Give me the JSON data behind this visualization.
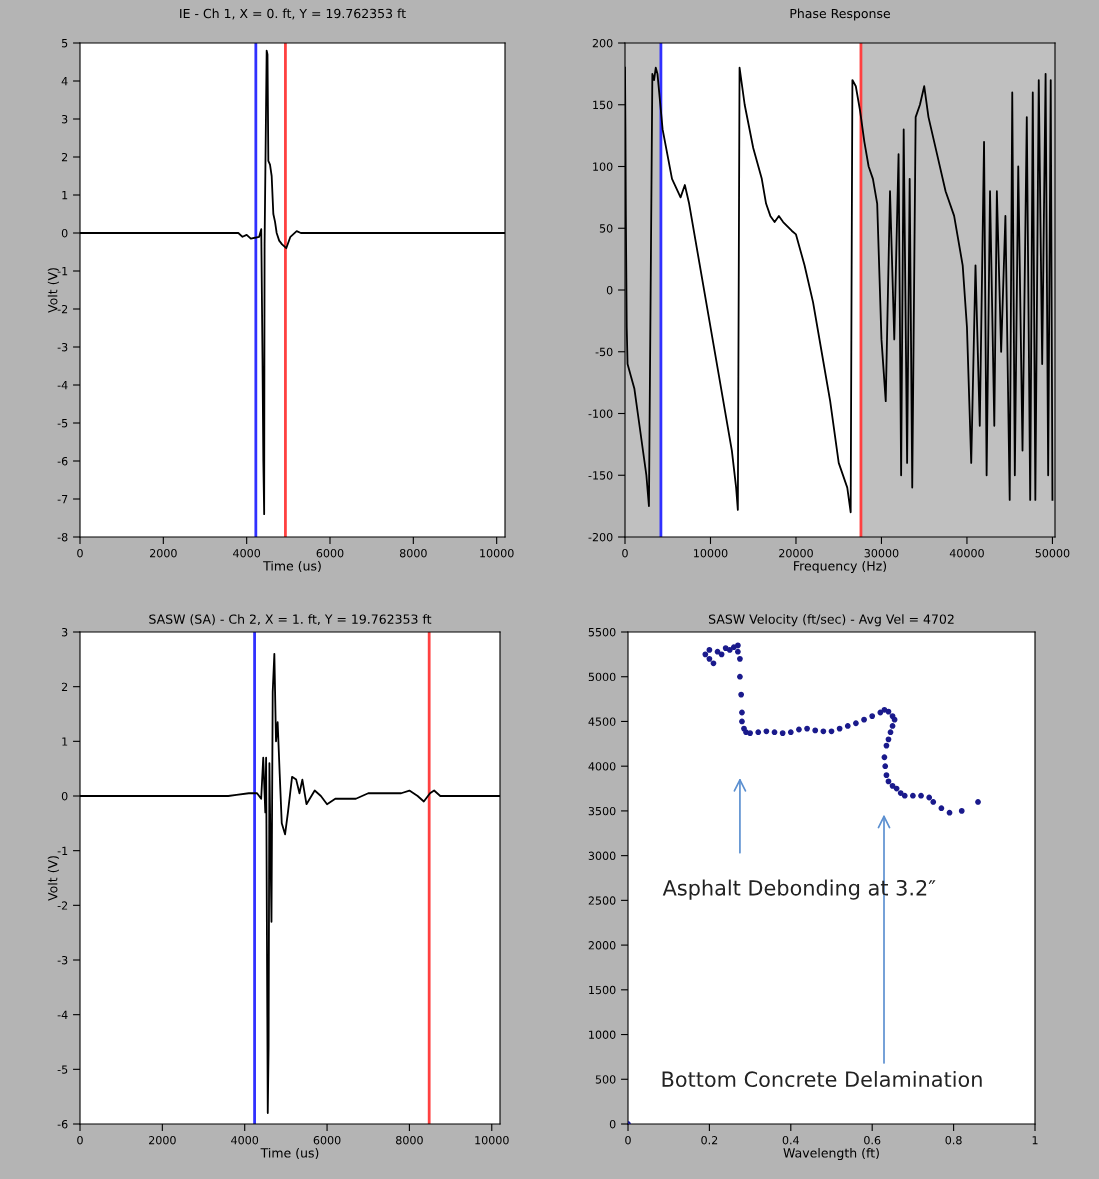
{
  "chart_data": [
    {
      "type": "line",
      "title": "IE - Ch 1, X = 0. ft, Y = 19.762353 ft",
      "xlabel": "Time (us)",
      "ylabel": "Volt (V)",
      "xlim": [
        0,
        10200
      ],
      "xticks": [
        0,
        2000,
        4000,
        6000,
        8000,
        10000
      ],
      "ylim": [
        -8,
        5
      ],
      "yticks": [
        -8,
        -7,
        -6,
        -5,
        -4,
        -3,
        -2,
        -1,
        0,
        1,
        2,
        3,
        4,
        5
      ],
      "grid": false,
      "legend": false,
      "series": [
        {
          "color": "#000000",
          "x": [
            0,
            3800,
            3900,
            4000,
            4100,
            4300,
            4350,
            4380,
            4400,
            4420,
            4430,
            4480,
            4500,
            4520,
            4560,
            4600,
            4640,
            4680,
            4720,
            4780,
            4850,
            4950,
            5050,
            5200,
            5300,
            10200
          ],
          "values": [
            0,
            0,
            -0.1,
            -0.05,
            -0.15,
            -0.1,
            0.1,
            -3.3,
            -6.0,
            -7.4,
            -0.3,
            4.8,
            4.7,
            1.9,
            1.8,
            1.5,
            0.5,
            0.3,
            0.0,
            -0.2,
            -0.3,
            -0.4,
            -0.1,
            0.05,
            0,
            0
          ]
        }
      ],
      "ref_lines": [
        {
          "axis": "x",
          "value": 4220,
          "color": "#3030ff"
        },
        {
          "axis": "x",
          "value": 4930,
          "color": "#ff4040"
        }
      ]
    },
    {
      "type": "line",
      "title": "Phase Response",
      "xlabel": "Frequency (Hz)",
      "xlim": [
        0,
        50300
      ],
      "xticks": [
        0,
        10000,
        20000,
        30000,
        40000,
        50000
      ],
      "ylim": [
        -200,
        200
      ],
      "yticks": [
        -200,
        -150,
        -100,
        -50,
        0,
        50,
        100,
        150,
        200
      ],
      "grid": false,
      "legend": false,
      "series": [
        {
          "color": "#000000",
          "x": [
            0,
            50,
            100,
            200,
            300,
            700,
            1100,
            1500,
            2500,
            2800,
            3000,
            3200,
            3400,
            3600,
            3800,
            4000,
            4400,
            5500,
            6500,
            7000,
            7500,
            9000,
            11000,
            12500,
            13000,
            13200,
            13300,
            13400,
            14000,
            15000,
            16000,
            16500,
            17000,
            17500,
            18000,
            18500,
            19500,
            20000,
            21000,
            22000,
            23000,
            24000,
            25000,
            26000,
            26400,
            26500,
            26600,
            27000,
            27500,
            28000,
            28500,
            29000,
            29500,
            30000,
            30500,
            31000,
            31500,
            32000,
            32300,
            32600,
            33000,
            33300,
            33600,
            34000,
            34500,
            35000,
            35500,
            36500,
            37500,
            38500,
            39500,
            40000,
            40500,
            41000,
            41500,
            42000,
            42300,
            42700,
            43200,
            43500,
            44000,
            44500,
            45000,
            45300,
            45600,
            46000,
            46500,
            47000,
            47400,
            47700,
            48000,
            48400,
            48800,
            49200,
            49500,
            49800,
            50000
          ],
          "values": [
            180,
            130,
            60,
            -30,
            -60,
            -70,
            -80,
            -100,
            -150,
            -175,
            0,
            175,
            170,
            180,
            175,
            160,
            130,
            90,
            75,
            85,
            70,
            10,
            -70,
            -130,
            -160,
            -178,
            0,
            180,
            150,
            115,
            90,
            70,
            60,
            55,
            60,
            55,
            48,
            45,
            20,
            -10,
            -50,
            -90,
            -140,
            -160,
            -180,
            0,
            170,
            165,
            145,
            120,
            100,
            90,
            70,
            -40,
            -90,
            80,
            -40,
            110,
            -150,
            130,
            -140,
            90,
            -160,
            140,
            150,
            165,
            140,
            110,
            80,
            60,
            20,
            -30,
            -140,
            20,
            -110,
            120,
            -150,
            80,
            -110,
            80,
            -50,
            60,
            -170,
            160,
            -150,
            100,
            -130,
            140,
            -170,
            160,
            -170,
            170,
            -60,
            175,
            -150,
            170,
            -170
          ]
        }
      ],
      "bands": [
        {
          "axis": "x",
          "from": 0,
          "to": 4200,
          "color": "#c0c0c0"
        },
        {
          "axis": "x",
          "from": 27600,
          "to": 50300,
          "color": "#c0c0c0"
        }
      ],
      "ref_lines": [
        {
          "axis": "x",
          "value": 4200,
          "color": "#3030ff"
        },
        {
          "axis": "x",
          "value": 27600,
          "color": "#ff4040"
        }
      ]
    },
    {
      "type": "line",
      "title": "SASW (SA) - Ch 2, X = 1. ft, Y = 19.762353 ft",
      "xlabel": "Time (us)",
      "ylabel": "Volt (V)",
      "xlim": [
        0,
        10200
      ],
      "xticks": [
        0,
        2000,
        4000,
        6000,
        8000,
        10000
      ],
      "ylim": [
        -6,
        3
      ],
      "yticks": [
        -6,
        -5,
        -4,
        -3,
        -2,
        -1,
        0,
        1,
        2,
        3
      ],
      "grid": false,
      "legend": false,
      "series": [
        {
          "color": "#000000",
          "x": [
            0,
            3600,
            3800,
            4100,
            4300,
            4400,
            4450,
            4500,
            4520,
            4560,
            4580,
            4600,
            4650,
            4680,
            4720,
            4760,
            4800,
            4850,
            4900,
            4980,
            5050,
            5150,
            5250,
            5330,
            5400,
            5500,
            5700,
            5850,
            6000,
            6200,
            6400,
            6700,
            7000,
            7400,
            7800,
            8000,
            8200,
            8350,
            8500,
            8600,
            8750,
            10200
          ],
          "values": [
            0,
            0,
            0.02,
            0.05,
            0.05,
            -0.05,
            0.7,
            -0.3,
            0.7,
            -5.8,
            -4.6,
            0.6,
            -2.3,
            1.9,
            2.6,
            1.0,
            1.35,
            0.4,
            -0.5,
            -0.7,
            -0.3,
            0.35,
            0.3,
            0.05,
            0.3,
            -0.15,
            0.1,
            0.0,
            -0.15,
            -0.05,
            -0.05,
            -0.05,
            0.05,
            0.05,
            0.05,
            0.1,
            0.0,
            -0.1,
            0.05,
            0.1,
            0.0,
            0
          ]
        }
      ],
      "ref_lines": [
        {
          "axis": "x",
          "value": 4240,
          "color": "#3030ff"
        },
        {
          "axis": "x",
          "value": 8480,
          "color": "#ff4040"
        }
      ]
    },
    {
      "type": "scatter",
      "title": "SASW Velocity (ft/sec) - Avg Vel = 4702",
      "xlabel": "Wavelength (ft)",
      "xlim": [
        0,
        1
      ],
      "xticks": [
        0,
        0.2,
        0.4,
        0.6,
        0.8,
        1
      ],
      "ylim": [
        0,
        5500
      ],
      "yticks": [
        0,
        500,
        1000,
        1500,
        2000,
        2500,
        3000,
        3500,
        4000,
        4500,
        5000,
        5500
      ],
      "grid": false,
      "legend": false,
      "marker": "circle",
      "series": [
        {
          "color": "#1a1a8c",
          "x": [
            0,
            0.19,
            0.2,
            0.2,
            0.21,
            0.22,
            0.23,
            0.24,
            0.25,
            0.26,
            0.27,
            0.27,
            0.275,
            0.275,
            0.278,
            0.28,
            0.28,
            0.285,
            0.29,
            0.3,
            0.32,
            0.34,
            0.36,
            0.38,
            0.4,
            0.42,
            0.44,
            0.46,
            0.48,
            0.5,
            0.52,
            0.54,
            0.56,
            0.58,
            0.6,
            0.62,
            0.63,
            0.64,
            0.65,
            0.655,
            0.65,
            0.645,
            0.64,
            0.635,
            0.63,
            0.632,
            0.635,
            0.64,
            0.65,
            0.66,
            0.67,
            0.68,
            0.7,
            0.72,
            0.74,
            0.75,
            0.77,
            0.79,
            0.82,
            0.86
          ],
          "values": [
            0,
            5250,
            5200,
            5300,
            5150,
            5280,
            5250,
            5320,
            5300,
            5330,
            5350,
            5280,
            5200,
            5000,
            4800,
            4600,
            4500,
            4420,
            4380,
            4370,
            4380,
            4390,
            4380,
            4370,
            4380,
            4410,
            4420,
            4400,
            4390,
            4390,
            4420,
            4450,
            4480,
            4520,
            4560,
            4600,
            4630,
            4610,
            4560,
            4520,
            4450,
            4380,
            4300,
            4230,
            4100,
            4000,
            3900,
            3830,
            3780,
            3750,
            3700,
            3670,
            3670,
            3670,
            3650,
            3600,
            3530,
            3480,
            3500,
            3600
          ]
        }
      ],
      "annotations": [
        "Asphalt Debonding at 3.2″",
        "Bottom Concrete Delamination"
      ]
    }
  ]
}
